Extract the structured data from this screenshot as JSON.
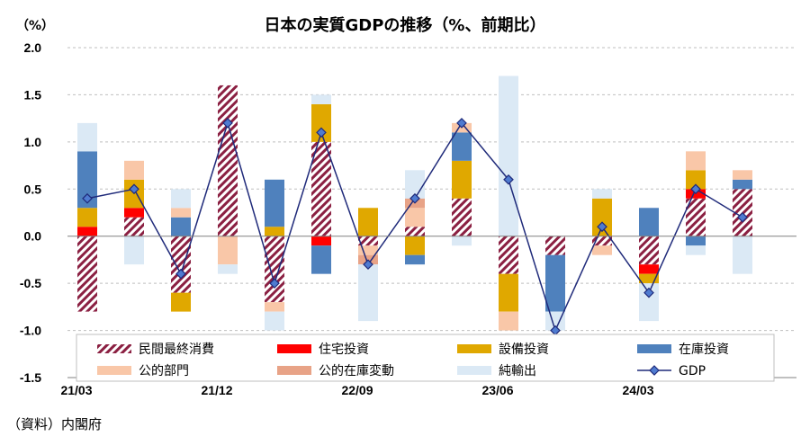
{
  "chart_data": {
    "type": "bar",
    "title": "日本の実質GDPの推移（%、前期比）",
    "unit_label": "（%）",
    "source": "（資料）内閣府",
    "ylim": [
      -1.5,
      2.0
    ],
    "yticks": [
      "2.0",
      "1.5",
      "1.0",
      "0.5",
      "0.0",
      "-0.5",
      "-1.0",
      "-1.5"
    ],
    "ytick_values": [
      2.0,
      1.5,
      1.0,
      0.5,
      0.0,
      -0.5,
      -1.0,
      -1.5
    ],
    "x_tick_labels": [
      {
        "label": "21/03",
        "index": 0
      },
      {
        "label": "21/12",
        "index": 3
      },
      {
        "label": "22/09",
        "index": 6
      },
      {
        "label": "23/06",
        "index": 9
      },
      {
        "label": "24/03",
        "index": 12
      }
    ],
    "quarters": [
      "21/03",
      "21/06",
      "21/09",
      "21/12",
      "22/03",
      "22/06",
      "22/09",
      "22/12",
      "23/03",
      "23/06",
      "23/09",
      "23/12",
      "24/03",
      "24/06",
      "24/09"
    ],
    "colors": {
      "private_consumption": "#8b2042",
      "housing": "#ff0000",
      "capex": "#e0a800",
      "inventory": "#4f81bd",
      "public": "#f9c7a8",
      "public_inventory": "#e8a387",
      "net_exports": "#dbe9f5",
      "gdp": "#1f2a7a"
    },
    "series": [
      {
        "key": "private_consumption",
        "name": "民間最終消費",
        "values": [
          -0.8,
          0.2,
          -0.6,
          1.6,
          -0.7,
          1.0,
          -0.1,
          0.1,
          0.4,
          -0.4,
          -0.2,
          -0.1,
          -0.3,
          0.4,
          0.5
        ]
      },
      {
        "key": "housing",
        "name": "住宅投資",
        "values": [
          0.1,
          0.1,
          0.0,
          0.0,
          0.0,
          -0.1,
          0.0,
          0.0,
          0.0,
          0.0,
          0.0,
          0.0,
          -0.1,
          0.1,
          0.0
        ]
      },
      {
        "key": "capex",
        "name": "設備投資",
        "values": [
          0.2,
          0.3,
          -0.2,
          0.0,
          0.1,
          0.4,
          0.3,
          -0.2,
          0.4,
          -0.4,
          0.0,
          0.4,
          -0.1,
          0.2,
          0.0
        ]
      },
      {
        "key": "inventory",
        "name": "在庫投資",
        "values": [
          0.6,
          0.0,
          0.2,
          0.0,
          0.5,
          -0.3,
          0.0,
          -0.1,
          0.3,
          0.0,
          -0.6,
          0.0,
          0.3,
          -0.1,
          0.1
        ]
      },
      {
        "key": "public",
        "name": "公的部門",
        "values": [
          0.0,
          0.2,
          0.1,
          -0.3,
          -0.1,
          0.0,
          -0.1,
          0.2,
          0.1,
          -0.2,
          0.0,
          -0.1,
          0.0,
          0.2,
          0.1
        ]
      },
      {
        "key": "public_inventory",
        "name": "公的在庫変動",
        "values": [
          0.0,
          0.0,
          0.0,
          0.0,
          0.0,
          0.0,
          -0.1,
          0.1,
          0.0,
          0.0,
          0.0,
          0.0,
          0.0,
          0.0,
          0.0
        ]
      },
      {
        "key": "net_exports",
        "name": "純輸出",
        "values": [
          0.3,
          -0.3,
          0.2,
          -0.1,
          -0.2,
          0.1,
          -0.6,
          0.3,
          -0.1,
          1.7,
          -0.2,
          0.1,
          -0.4,
          -0.1,
          -0.4
        ]
      },
      {
        "key": "gdp",
        "name": "GDP",
        "line": true,
        "values": [
          0.4,
          0.5,
          -0.4,
          1.2,
          -0.5,
          1.1,
          -0.3,
          0.4,
          1.2,
          0.6,
          -1.0,
          0.1,
          -0.6,
          0.5,
          0.2
        ]
      }
    ],
    "legend_order": [
      "private_consumption",
      "housing",
      "capex",
      "inventory",
      "public",
      "public_inventory",
      "net_exports",
      "gdp"
    ]
  }
}
